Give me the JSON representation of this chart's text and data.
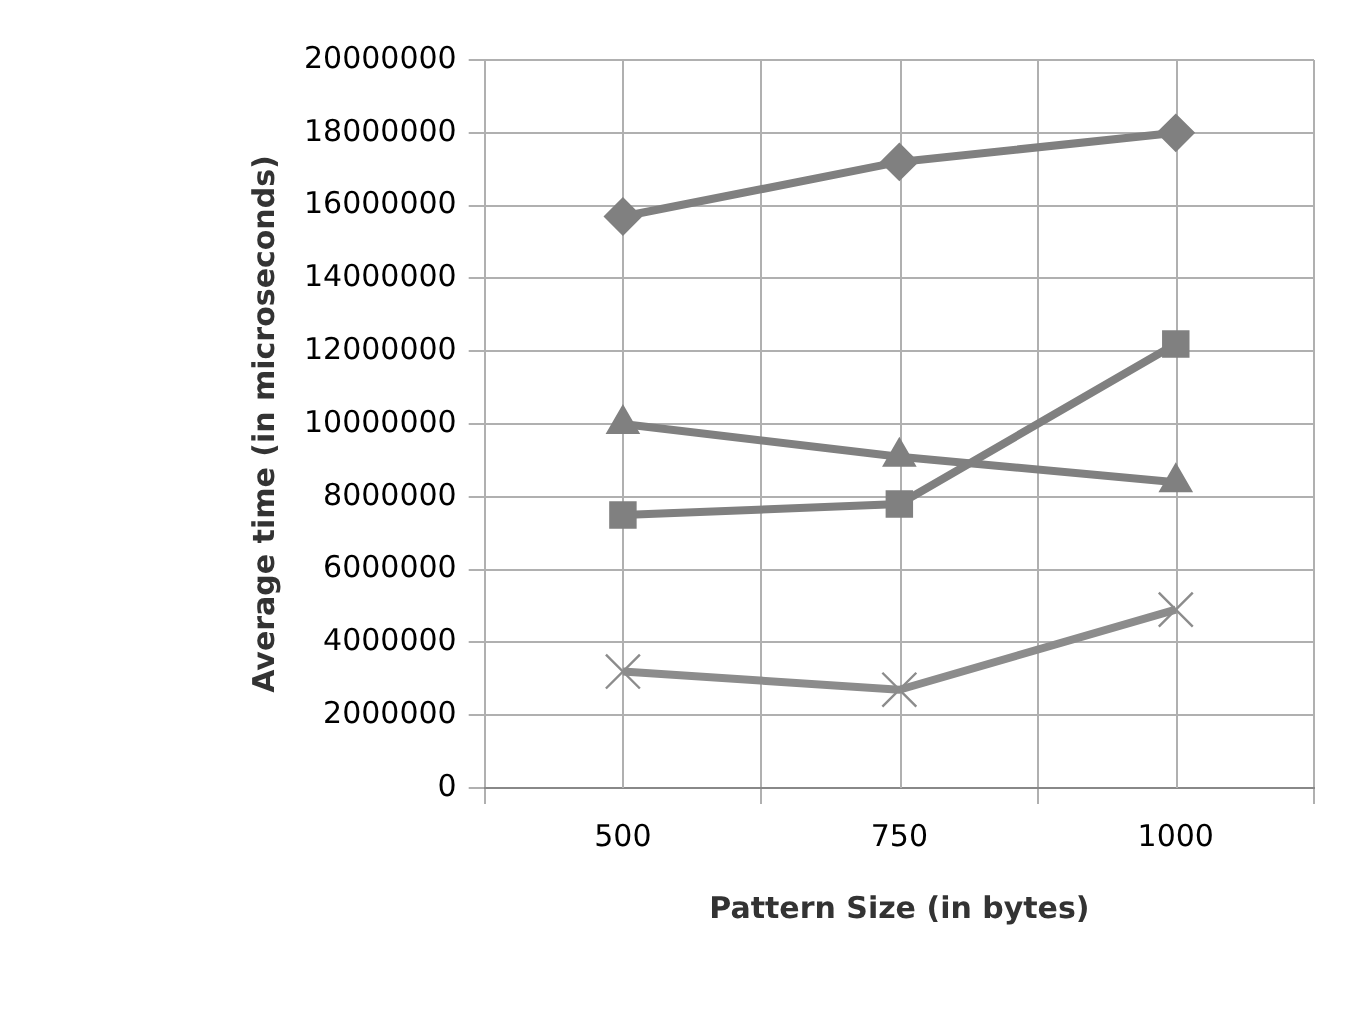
{
  "chart_data": {
    "type": "line",
    "xlabel": "Pattern Size (in bytes)",
    "ylabel": "Average time (in microseconds)",
    "categories": [
      "500",
      "750",
      "1000"
    ],
    "series": [
      {
        "color": "#808080",
        "marker": "diamond",
        "values": [
          15700000,
          17200000,
          18000000
        ]
      },
      {
        "color": "#808080",
        "marker": "square",
        "values": [
          7500000,
          7800000,
          12200000
        ]
      },
      {
        "color": "#808080",
        "marker": "triangle",
        "values": [
          10000000,
          9100000,
          8400000
        ]
      },
      {
        "color": "#8c8c8c",
        "marker": "cross",
        "values": [
          3200000,
          2700000,
          4900000
        ]
      }
    ],
    "ylim": [
      0,
      20000000
    ],
    "yticks": [
      0,
      2000000,
      4000000,
      6000000,
      8000000,
      10000000,
      12000000,
      14000000,
      16000000,
      18000000,
      20000000
    ],
    "grid": true,
    "legend": false
  }
}
